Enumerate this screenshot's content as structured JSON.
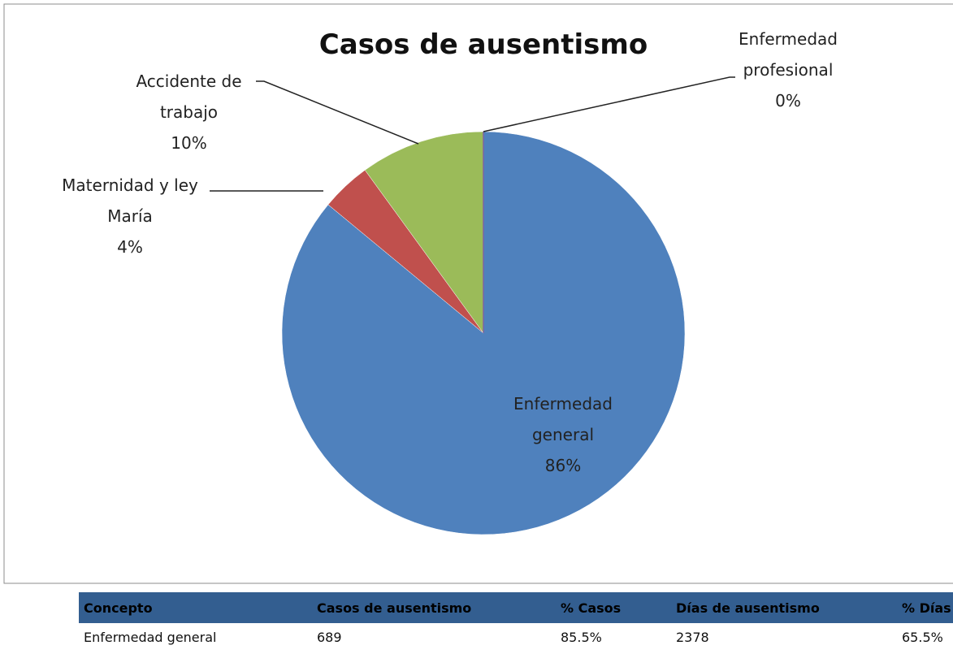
{
  "chart_data": {
    "type": "pie",
    "title": "Casos de ausentismo",
    "categories": [
      "Enfermedad general",
      "Maternidad y ley María",
      "Accidente de trabajo",
      "Enfermedad profesional"
    ],
    "values": [
      86,
      4,
      10,
      0
    ],
    "value_labels": [
      "86%",
      "4%",
      "10%",
      "0%"
    ],
    "colors": [
      "#4f81bd",
      "#c0504d",
      "#9bbb59",
      "#8064a2"
    ]
  },
  "table": {
    "header": [
      "Concepto",
      "Casos de ausentismo",
      "% Casos",
      "Días de ausentismo",
      "% Días"
    ],
    "rows": [
      [
        "Enfermedad general",
        "689",
        "85.5%",
        "2378",
        "65.5%"
      ]
    ]
  }
}
